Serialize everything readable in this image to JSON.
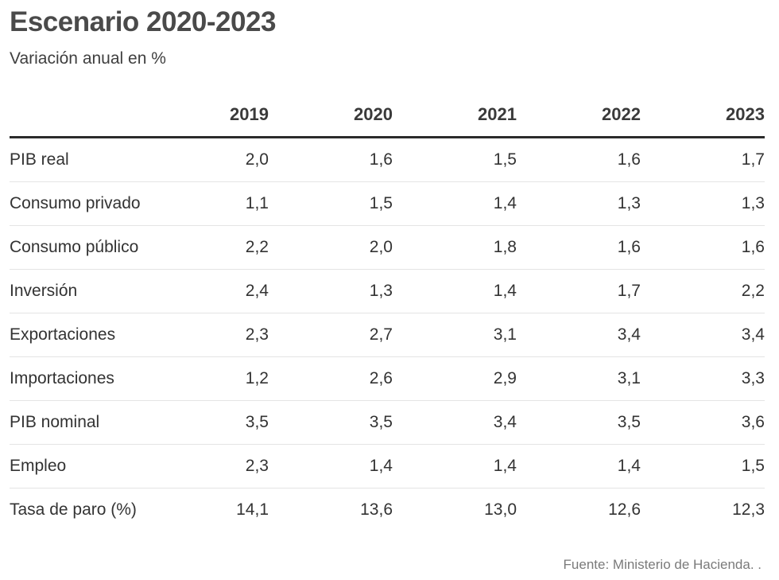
{
  "chart_data": {
    "type": "table",
    "title": "Escenario 2020-2023",
    "subtitle": "Variación anual en %",
    "columns": [
      "2019",
      "2020",
      "2021",
      "2022",
      "2023"
    ],
    "rows": [
      {
        "label": "PIB real",
        "values": [
          "2,0",
          "1,6",
          "1,5",
          "1,6",
          "1,7"
        ]
      },
      {
        "label": "Consumo privado",
        "values": [
          "1,1",
          "1,5",
          "1,4",
          "1,3",
          "1,3"
        ]
      },
      {
        "label": "Consumo público",
        "values": [
          "2,2",
          "2,0",
          "1,8",
          "1,6",
          "1,6"
        ]
      },
      {
        "label": "Inversión",
        "values": [
          "2,4",
          "1,3",
          "1,4",
          "1,7",
          "2,2"
        ]
      },
      {
        "label": "Exportaciones",
        "values": [
          "2,3",
          "2,7",
          "3,1",
          "3,4",
          "3,4"
        ]
      },
      {
        "label": "Importaciones",
        "values": [
          "1,2",
          "2,6",
          "2,9",
          "3,1",
          "3,3"
        ]
      },
      {
        "label": "PIB nominal",
        "values": [
          "3,5",
          "3,5",
          "3,4",
          "3,5",
          "3,6"
        ]
      },
      {
        "label": "Empleo",
        "values": [
          "2,3",
          "1,4",
          "1,4",
          "1,4",
          "1,5"
        ]
      },
      {
        "label": "Tasa de paro (%)",
        "values": [
          "14,1",
          "13,6",
          "13,0",
          "12,6",
          "12,3"
        ]
      }
    ],
    "source": "Fuente: Ministerio de Hacienda. ."
  }
}
